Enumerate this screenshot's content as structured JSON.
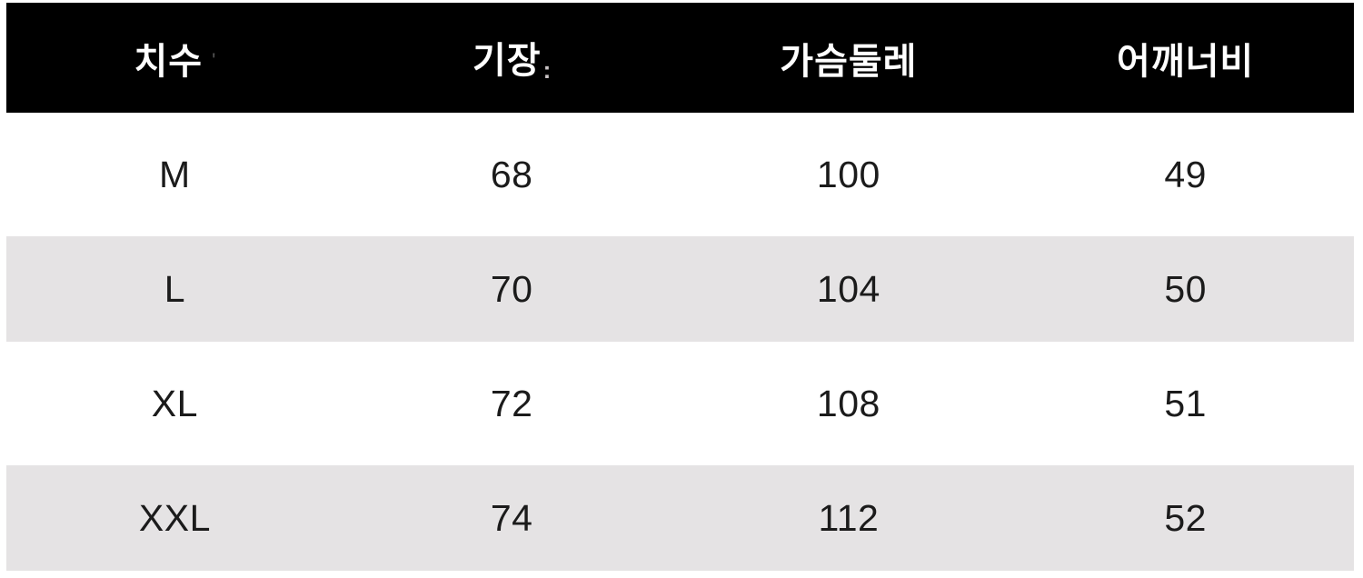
{
  "chart_data": {
    "type": "table",
    "columns": [
      "치수",
      "기장",
      "가슴둘레",
      "어깨너비"
    ],
    "rows": [
      [
        "M",
        "68",
        "100",
        "49"
      ],
      [
        "L",
        "70",
        "104",
        "50"
      ],
      [
        "XL",
        "72",
        "108",
        "51"
      ],
      [
        "XXL",
        "74",
        "112",
        "52"
      ]
    ],
    "legend_position": "none",
    "grid": false
  },
  "header_marks": {
    "after_size": "'",
    "after_length": ":"
  },
  "colors": {
    "header_bg": "#000000",
    "header_text": "#ffffff",
    "stripe_row_bg": "#e5e3e4",
    "plain_row_bg": "#ffffff",
    "cell_text": "#1b1b1b",
    "page_bg": "#ffffff"
  }
}
